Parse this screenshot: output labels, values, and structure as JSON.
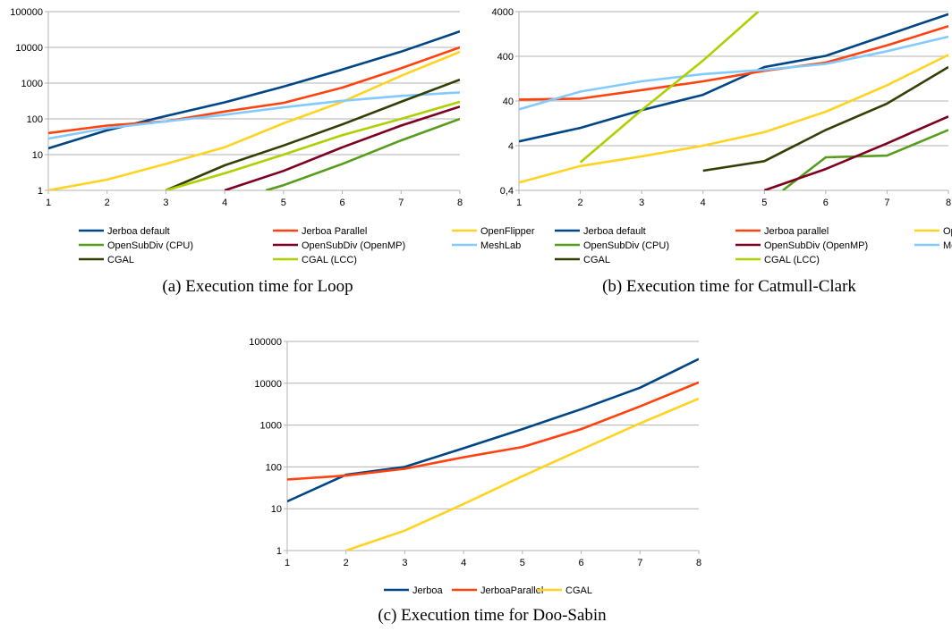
{
  "chart_data": [
    {
      "id": "a",
      "type": "line",
      "caption": "(a) Execution time for Loop",
      "x_ticks": [
        1,
        2,
        3,
        4,
        5,
        6,
        7,
        8
      ],
      "xlim": [
        1,
        8
      ],
      "y_scale": "log",
      "ylim": [
        1,
        100000
      ],
      "y_ticks": [
        {
          "value": 1,
          "label": "1"
        },
        {
          "value": 10,
          "label": "10"
        },
        {
          "value": 100,
          "label": "100"
        },
        {
          "value": 1000,
          "label": "1000"
        },
        {
          "value": 10000,
          "label": "10000"
        },
        {
          "value": 100000,
          "label": "100000"
        }
      ],
      "grid": "horizontal",
      "legend_position": "bottom",
      "legend_columns": 3,
      "series": [
        {
          "name": "Jerboa default",
          "color": "#004586",
          "points": [
            [
              1,
              15
            ],
            [
              2,
              48
            ],
            [
              3,
              120
            ],
            [
              4,
              290
            ],
            [
              5,
              800
            ],
            [
              6,
              2400
            ],
            [
              7,
              7600
            ],
            [
              8,
              28000
            ]
          ]
        },
        {
          "name": "Jerboa Parallel",
          "color": "#ff420e",
          "points": [
            [
              1,
              40
            ],
            [
              2,
              65
            ],
            [
              3,
              85
            ],
            [
              4,
              160
            ],
            [
              5,
              280
            ],
            [
              6,
              750
            ],
            [
              7,
              2600
            ],
            [
              8,
              10000
            ]
          ]
        },
        {
          "name": "OpenFlipper",
          "color": "#ffd320",
          "points": [
            [
              1,
              1
            ],
            [
              2,
              2
            ],
            [
              3,
              5.5
            ],
            [
              4,
              16
            ],
            [
              5,
              75
            ],
            [
              6,
              300
            ],
            [
              7,
              1600
            ],
            [
              8,
              7500
            ]
          ]
        },
        {
          "name": "OpenSubDiv (CPU)",
          "color": "#579d1c",
          "points": [
            [
              4.7,
              1
            ],
            [
              5,
              1.4
            ],
            [
              6,
              5.5
            ],
            [
              7,
              25
            ],
            [
              8,
              100
            ]
          ]
        },
        {
          "name": "OpenSubDiv (OpenMP)",
          "color": "#7e0021",
          "points": [
            [
              4,
              1
            ],
            [
              5,
              3.5
            ],
            [
              6,
              16
            ],
            [
              7,
              65
            ],
            [
              8,
              220
            ]
          ]
        },
        {
          "name": "MeshLab",
          "color": "#83caff",
          "points": [
            [
              1,
              28
            ],
            [
              2,
              55
            ],
            [
              3,
              85
            ],
            [
              4,
              130
            ],
            [
              5,
              210
            ],
            [
              6,
              320
            ],
            [
              7,
              440
            ],
            [
              8,
              550
            ]
          ]
        },
        {
          "name": "CGAL",
          "color": "#314004",
          "points": [
            [
              3,
              1
            ],
            [
              4,
              5
            ],
            [
              5,
              18
            ],
            [
              6,
              70
            ],
            [
              7,
              300
            ],
            [
              8,
              1250
            ]
          ]
        },
        {
          "name": "CGAL (LCC)",
          "color": "#aecf00",
          "points": [
            [
              3,
              1
            ],
            [
              4,
              3
            ],
            [
              5,
              10
            ],
            [
              6,
              35
            ],
            [
              7,
              100
            ],
            [
              8,
              300
            ]
          ]
        }
      ]
    },
    {
      "id": "b",
      "type": "line",
      "caption": "(b) Execution time for Catmull-Clark",
      "x_ticks": [
        1,
        2,
        3,
        4,
        5,
        6,
        7,
        8
      ],
      "xlim": [
        1,
        8
      ],
      "y_scale": "log",
      "ylim": [
        0.4,
        4000
      ],
      "y_ticks": [
        {
          "value": 0.4,
          "label": "0,4"
        },
        {
          "value": 4,
          "label": "4"
        },
        {
          "value": 40,
          "label": "40"
        },
        {
          "value": 400,
          "label": "400"
        },
        {
          "value": 4000,
          "label": "4000"
        }
      ],
      "grid": "horizontal",
      "legend_position": "bottom",
      "legend_columns": 3,
      "series": [
        {
          "name": "Jerboa default",
          "color": "#004586",
          "points": [
            [
              1,
              5
            ],
            [
              2,
              10
            ],
            [
              3,
              25
            ],
            [
              4,
              55
            ],
            [
              5,
              230
            ],
            [
              6,
              410
            ],
            [
              7,
              1200
            ],
            [
              8,
              3500
            ]
          ]
        },
        {
          "name": "Jerboa parallel",
          "color": "#ff420e",
          "points": [
            [
              1,
              43
            ],
            [
              2,
              45
            ],
            [
              3,
              70
            ],
            [
              4,
              110
            ],
            [
              5,
              190
            ],
            [
              6,
              290
            ],
            [
              7,
              700
            ],
            [
              8,
              1900
            ]
          ]
        },
        {
          "name": "OpenFlipper",
          "color": "#ffd320",
          "points": [
            [
              1,
              0.6
            ],
            [
              2,
              1.4
            ],
            [
              3,
              2.3
            ],
            [
              4,
              4
            ],
            [
              5,
              8
            ],
            [
              6,
              23
            ],
            [
              7,
              90
            ],
            [
              8,
              430
            ]
          ]
        },
        {
          "name": "OpenSubDiv (CPU)",
          "color": "#579d1c",
          "points": [
            [
              5.3,
              0.4
            ],
            [
              6,
              2.2
            ],
            [
              7,
              2.4
            ],
            [
              8,
              9
            ]
          ]
        },
        {
          "name": "OpenSubDiv (OpenMP)",
          "color": "#7e0021",
          "points": [
            [
              5,
              0.4
            ],
            [
              6,
              1.2
            ],
            [
              7,
              4.5
            ],
            [
              8,
              18
            ]
          ]
        },
        {
          "name": "MeshLab",
          "color": "#83caff",
          "points": [
            [
              1,
              26
            ],
            [
              2,
              65
            ],
            [
              3,
              110
            ],
            [
              4,
              160
            ],
            [
              5,
              200
            ],
            [
              6,
              270
            ],
            [
              7,
              520
            ],
            [
              8,
              1100
            ]
          ]
        },
        {
          "name": "CGAL",
          "color": "#314004",
          "points": [
            [
              4,
              1.1
            ],
            [
              5,
              1.8
            ],
            [
              6,
              9
            ],
            [
              7,
              35
            ],
            [
              8,
              230
            ]
          ]
        },
        {
          "name": "CGAL (LCC)",
          "color": "#aecf00",
          "points": [
            [
              2,
              1.7
            ],
            [
              3,
              25
            ],
            [
              4,
              320
            ],
            [
              4.9,
              4000
            ]
          ]
        }
      ]
    },
    {
      "id": "c",
      "type": "line",
      "caption": "(c) Execution time for Doo-Sabin",
      "x_ticks": [
        1,
        2,
        3,
        4,
        5,
        6,
        7,
        8
      ],
      "xlim": [
        1,
        8
      ],
      "y_scale": "log",
      "ylim": [
        1,
        100000
      ],
      "y_ticks": [
        {
          "value": 1,
          "label": "1"
        },
        {
          "value": 10,
          "label": "10"
        },
        {
          "value": 100,
          "label": "100"
        },
        {
          "value": 1000,
          "label": "1000"
        },
        {
          "value": 10000,
          "label": "10000"
        },
        {
          "value": 100000,
          "label": "100000"
        }
      ],
      "grid": "horizontal",
      "legend_position": "bottom",
      "legend_columns": 3,
      "series": [
        {
          "name": "Jerboa",
          "color": "#004586",
          "points": [
            [
              1,
              15
            ],
            [
              2,
              65
            ],
            [
              3,
              100
            ],
            [
              4,
              280
            ],
            [
              5,
              800
            ],
            [
              6,
              2400
            ],
            [
              7,
              7800
            ],
            [
              8,
              38000
            ]
          ]
        },
        {
          "name": "JerboaParallel",
          "color": "#ff420e",
          "points": [
            [
              1,
              50
            ],
            [
              2,
              62
            ],
            [
              3,
              90
            ],
            [
              4,
              170
            ],
            [
              5,
              300
            ],
            [
              6,
              800
            ],
            [
              7,
              2800
            ],
            [
              8,
              10500
            ]
          ]
        },
        {
          "name": "CGAL",
          "color": "#ffd320",
          "points": [
            [
              2,
              1
            ],
            [
              3,
              3
            ],
            [
              4,
              13
            ],
            [
              5,
              60
            ],
            [
              6,
              260
            ],
            [
              7,
              1100
            ],
            [
              8,
              4300
            ]
          ]
        }
      ]
    }
  ]
}
